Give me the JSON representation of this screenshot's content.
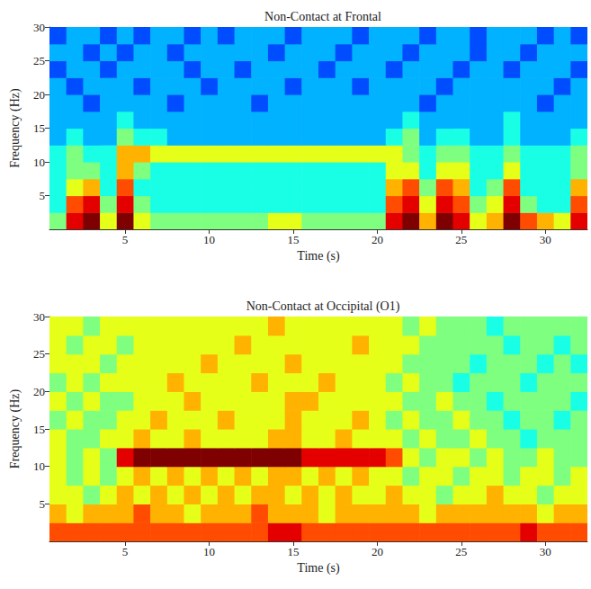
{
  "chart_data": [
    {
      "type": "heatmap",
      "title": "Non-Contact at Frontal",
      "x_label": "Time (s)",
      "y_label": "Frequency (Hz)",
      "xlim": [
        0.5,
        32.5
      ],
      "ylim": [
        0,
        30
      ],
      "xticks": [
        5,
        10,
        15,
        20,
        25,
        30
      ],
      "yticks": [
        5,
        10,
        15,
        20,
        25,
        30
      ],
      "grid": false,
      "zlim": [
        0,
        10
      ],
      "x": [
        1,
        2,
        3,
        4,
        5,
        6,
        7,
        8,
        9,
        10,
        11,
        12,
        13,
        14,
        15,
        16,
        17,
        18,
        19,
        20,
        21,
        22,
        23,
        24,
        25,
        26,
        27,
        28,
        29,
        30,
        31,
        32
      ],
      "y": [
        1.25,
        3.75,
        6.25,
        8.75,
        11.25,
        13.75,
        16.25,
        18.75,
        21.25,
        23.75,
        26.25,
        28.75
      ],
      "cells": [
        [
          5,
          9,
          10,
          6,
          10,
          6,
          5,
          5,
          5,
          5,
          5,
          5,
          5,
          6,
          6,
          5,
          5,
          5,
          5,
          5,
          9,
          10,
          7,
          10,
          9,
          6,
          7,
          10,
          8,
          7,
          6,
          9
        ],
        [
          4,
          8,
          9,
          5,
          9,
          5,
          4,
          4,
          4,
          4,
          4,
          4,
          4,
          4,
          4,
          4,
          4,
          4,
          4,
          4,
          8,
          9,
          6,
          9,
          8,
          5,
          6,
          9,
          5,
          4,
          4,
          8
        ],
        [
          4,
          6,
          7,
          4,
          8,
          4,
          4,
          4,
          4,
          4,
          4,
          4,
          4,
          4,
          4,
          4,
          4,
          4,
          4,
          4,
          7,
          8,
          5,
          8,
          7,
          4,
          5,
          8,
          4,
          4,
          4,
          7
        ],
        [
          4,
          5,
          5,
          4,
          7,
          5,
          4,
          4,
          4,
          4,
          4,
          4,
          4,
          4,
          4,
          4,
          4,
          4,
          4,
          4,
          6,
          6,
          4,
          6,
          6,
          4,
          4,
          6,
          4,
          4,
          4,
          5
        ],
        [
          4,
          5,
          4,
          4,
          7,
          7,
          6,
          6,
          6,
          6,
          6,
          6,
          6,
          6,
          6,
          6,
          6,
          6,
          6,
          6,
          6,
          5,
          4,
          5,
          5,
          4,
          4,
          5,
          4,
          4,
          4,
          5
        ],
        [
          3,
          4,
          3,
          3,
          5,
          4,
          4,
          3,
          3,
          3,
          3,
          3,
          3,
          3,
          3,
          3,
          3,
          3,
          3,
          3,
          4,
          5,
          3,
          4,
          4,
          3,
          3,
          4,
          3,
          3,
          3,
          4
        ],
        [
          3,
          3,
          3,
          3,
          4,
          3,
          3,
          3,
          3,
          3,
          3,
          3,
          3,
          3,
          3,
          3,
          3,
          3,
          3,
          3,
          3,
          4,
          3,
          3,
          3,
          3,
          3,
          4,
          3,
          3,
          3,
          3
        ],
        [
          3,
          3,
          2,
          3,
          3,
          3,
          3,
          2,
          3,
          3,
          3,
          3,
          2,
          3,
          3,
          3,
          3,
          3,
          3,
          3,
          3,
          3,
          2,
          3,
          3,
          3,
          3,
          3,
          3,
          2,
          3,
          3
        ],
        [
          3,
          2,
          3,
          3,
          3,
          2,
          3,
          3,
          3,
          2,
          3,
          3,
          3,
          3,
          2,
          3,
          3,
          3,
          2,
          3,
          3,
          3,
          3,
          2,
          3,
          3,
          3,
          3,
          3,
          3,
          2,
          3
        ],
        [
          2,
          3,
          3,
          2,
          3,
          3,
          3,
          3,
          2,
          3,
          3,
          2,
          3,
          3,
          3,
          3,
          2,
          3,
          3,
          3,
          2,
          3,
          3,
          3,
          2,
          3,
          3,
          2,
          3,
          3,
          3,
          2
        ],
        [
          3,
          3,
          2,
          3,
          2,
          3,
          3,
          2,
          3,
          3,
          3,
          3,
          3,
          2,
          3,
          3,
          3,
          2,
          3,
          3,
          3,
          2,
          3,
          3,
          3,
          2,
          3,
          3,
          2,
          3,
          3,
          3
        ],
        [
          2,
          3,
          3,
          2,
          3,
          2,
          3,
          3,
          2,
          3,
          2,
          3,
          3,
          3,
          2,
          3,
          3,
          3,
          2,
          3,
          3,
          3,
          2,
          3,
          3,
          2,
          3,
          3,
          3,
          2,
          3,
          2
        ]
      ]
    },
    {
      "type": "heatmap",
      "title": "Non-Contact at Occipital (O1)",
      "x_label": "Time (s)",
      "y_label": "Frequency (Hz)",
      "xlim": [
        0.5,
        32.5
      ],
      "ylim": [
        0,
        30
      ],
      "xticks": [
        5,
        10,
        15,
        20,
        25,
        30
      ],
      "yticks": [
        5,
        10,
        15,
        20,
        25,
        30
      ],
      "grid": false,
      "zlim": [
        0,
        10
      ],
      "x": [
        1,
        2,
        3,
        4,
        5,
        6,
        7,
        8,
        9,
        10,
        11,
        12,
        13,
        14,
        15,
        16,
        17,
        18,
        19,
        20,
        21,
        22,
        23,
        24,
        25,
        26,
        27,
        28,
        29,
        30,
        31,
        32
      ],
      "y": [
        1.25,
        3.75,
        6.25,
        8.75,
        11.25,
        13.75,
        16.25,
        18.75,
        21.25,
        23.75,
        26.25,
        28.75
      ],
      "cells": [
        [
          8,
          8,
          8,
          8,
          8,
          8,
          8,
          8,
          8,
          8,
          8,
          8,
          8,
          9,
          9,
          8,
          8,
          8,
          8,
          8,
          8,
          8,
          8,
          8,
          8,
          8,
          8,
          8,
          9,
          8,
          8,
          8
        ],
        [
          7,
          6,
          7,
          7,
          7,
          8,
          7,
          7,
          6,
          7,
          7,
          7,
          8,
          7,
          7,
          7,
          6,
          7,
          7,
          7,
          7,
          7,
          6,
          7,
          7,
          7,
          7,
          7,
          7,
          6,
          7,
          7
        ],
        [
          6,
          6,
          5,
          6,
          7,
          6,
          7,
          6,
          7,
          6,
          7,
          6,
          7,
          7,
          6,
          7,
          6,
          7,
          6,
          6,
          7,
          6,
          6,
          5,
          6,
          6,
          7,
          6,
          6,
          5,
          6,
          6
        ],
        [
          6,
          5,
          6,
          5,
          6,
          7,
          6,
          7,
          6,
          7,
          6,
          7,
          6,
          7,
          7,
          6,
          7,
          6,
          7,
          6,
          6,
          5,
          6,
          6,
          5,
          6,
          6,
          5,
          6,
          6,
          5,
          6
        ],
        [
          6,
          5,
          6,
          5,
          9,
          10,
          10,
          10,
          10,
          10,
          10,
          10,
          10,
          10,
          10,
          9,
          9,
          9,
          9,
          9,
          8,
          6,
          5,
          6,
          6,
          5,
          6,
          5,
          5,
          6,
          5,
          5
        ],
        [
          6,
          5,
          5,
          6,
          6,
          7,
          6,
          6,
          7,
          6,
          6,
          6,
          6,
          7,
          7,
          6,
          6,
          7,
          6,
          6,
          6,
          5,
          6,
          5,
          5,
          6,
          5,
          5,
          4,
          5,
          5,
          5
        ],
        [
          5,
          6,
          5,
          5,
          6,
          6,
          7,
          6,
          6,
          6,
          7,
          6,
          6,
          6,
          7,
          6,
          6,
          6,
          7,
          6,
          5,
          6,
          5,
          5,
          6,
          5,
          5,
          4,
          5,
          5,
          4,
          5
        ],
        [
          6,
          5,
          6,
          5,
          5,
          6,
          6,
          6,
          7,
          6,
          6,
          6,
          6,
          6,
          7,
          7,
          6,
          6,
          6,
          6,
          6,
          5,
          5,
          6,
          5,
          5,
          4,
          5,
          5,
          5,
          5,
          4
        ],
        [
          5,
          6,
          5,
          6,
          6,
          6,
          6,
          7,
          6,
          6,
          6,
          6,
          7,
          6,
          6,
          6,
          7,
          6,
          6,
          6,
          5,
          6,
          5,
          5,
          4,
          5,
          5,
          5,
          4,
          5,
          5,
          5
        ],
        [
          6,
          6,
          6,
          5,
          6,
          6,
          6,
          6,
          6,
          7,
          6,
          6,
          6,
          6,
          7,
          6,
          6,
          6,
          6,
          6,
          6,
          5,
          5,
          5,
          5,
          4,
          5,
          5,
          5,
          4,
          5,
          4
        ],
        [
          6,
          5,
          6,
          6,
          5,
          6,
          6,
          6,
          6,
          6,
          6,
          7,
          6,
          6,
          6,
          6,
          6,
          6,
          7,
          6,
          6,
          6,
          5,
          5,
          5,
          5,
          5,
          4,
          5,
          5,
          4,
          5
        ],
        [
          6,
          6,
          5,
          6,
          6,
          6,
          6,
          6,
          6,
          6,
          6,
          6,
          6,
          7,
          6,
          6,
          6,
          6,
          6,
          6,
          6,
          5,
          6,
          5,
          5,
          5,
          4,
          5,
          5,
          5,
          5,
          5
        ]
      ]
    }
  ]
}
